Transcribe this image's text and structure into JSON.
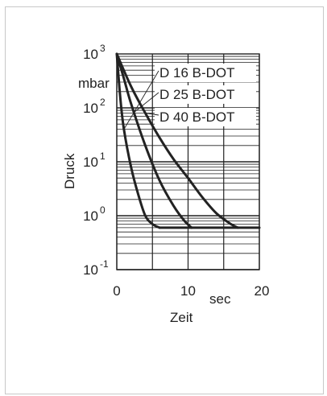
{
  "chart_data": {
    "type": "line",
    "xlabel": "Zeit",
    "xunit": "sec",
    "ylabel": "Druck",
    "yunit": "mbar",
    "x_ticks": [
      "0",
      "10",
      "20"
    ],
    "y_ticks": [
      {
        "base": "10",
        "exp": "3"
      },
      {
        "base": "10",
        "exp": "2"
      },
      {
        "base": "10",
        "exp": "1"
      },
      {
        "base": "10",
        "exp": "0"
      },
      {
        "base": "10",
        "exp": "-1"
      }
    ],
    "xlim": [
      0,
      20
    ],
    "ylim": [
      0.1,
      1000
    ],
    "yscale": "log",
    "grid": true,
    "line_color": "#222222",
    "series": [
      {
        "name": "D 16 B-DOT",
        "x": [
          0,
          0.5,
          1,
          2,
          3,
          4,
          5,
          6
        ],
        "y": [
          1000,
          150,
          40,
          8,
          2.5,
          1.0,
          0.7,
          0.6
        ]
      },
      {
        "name": "D 25 B-DOT",
        "x": [
          0,
          1,
          2,
          4,
          6,
          8,
          9.5,
          10.5
        ],
        "y": [
          1000,
          350,
          120,
          20,
          4.5,
          1.5,
          0.8,
          0.6
        ]
      },
      {
        "name": "D 40 B-DOT",
        "x": [
          0,
          2,
          4,
          6,
          8,
          10,
          12,
          14,
          16,
          17
        ],
        "y": [
          1000,
          250,
          80,
          28,
          11,
          5,
          2.2,
          1.1,
          0.7,
          0.6
        ]
      }
    ],
    "floor_value": 0.6,
    "floor_x_end": 20
  }
}
